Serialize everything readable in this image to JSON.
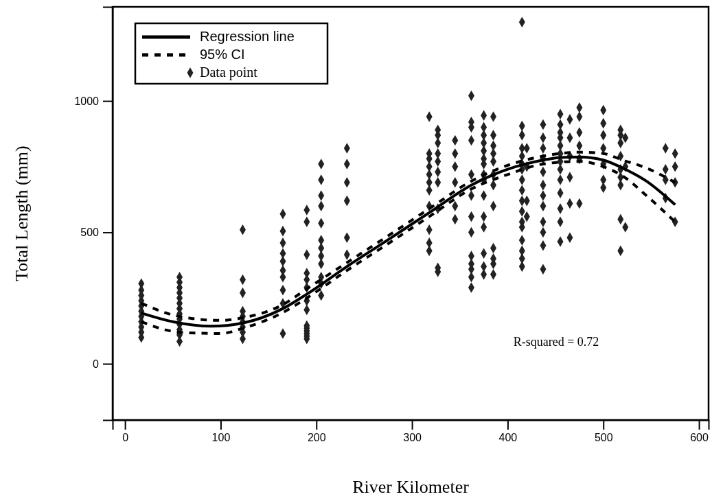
{
  "chart_data": {
    "type": "scatter",
    "xlabel": "River Kilometer",
    "ylabel": "Total Length (mm)",
    "xlim": [
      -13,
      610
    ],
    "ylim": [
      -214,
      1358
    ],
    "xticks": [
      0,
      100,
      200,
      300,
      400,
      500,
      600
    ],
    "yticks": [
      0,
      500,
      1000
    ],
    "legend": "top left",
    "grid": false,
    "annotations": [
      "R-squared = 0.72"
    ],
    "series": [
      {
        "name": "Regression line",
        "type": "line",
        "line_style": "solid",
        "color": "#000000",
        "x": [
          17,
          50,
          90,
          123,
          165,
          190,
          232,
          270,
          318,
          362,
          400,
          437,
          455,
          475,
          500,
          520,
          545,
          575
        ],
        "values": [
          193,
          160,
          143,
          155,
          210,
          265,
          370,
          460,
          575,
          680,
          740,
          775,
          785,
          787,
          775,
          745,
          695,
          605
        ]
      },
      {
        "name": "95% CI",
        "type": "line",
        "line_style": "dashed",
        "color": "#000000",
        "x": [
          17,
          57,
          100,
          123,
          165,
          190,
          232,
          270,
          318,
          362,
          400,
          437,
          475,
          500,
          520,
          545,
          575
        ],
        "values": [
          230,
          180,
          165,
          175,
          225,
          285,
          385,
          475,
          590,
          695,
          755,
          790,
          805,
          800,
          775,
          745,
          690
        ]
      },
      {
        "type": "line",
        "line_style": "dashed",
        "color": "#000000",
        "x": [
          17,
          57,
          100,
          123,
          165,
          190,
          232,
          270,
          318,
          362,
          400,
          437,
          475,
          500,
          520,
          545,
          575
        ],
        "values": [
          160,
          120,
          115,
          135,
          195,
          250,
          355,
          445,
          560,
          665,
          720,
          760,
          770,
          750,
          715,
          640,
          540
        ]
      },
      {
        "name": "Data point",
        "marker": "diamond",
        "color": "#222222",
        "x": [
          17,
          17,
          17,
          17,
          17,
          17,
          17,
          17,
          17,
          17,
          17,
          57,
          57,
          57,
          57,
          57,
          57,
          57,
          57,
          57,
          57,
          57,
          57,
          57,
          123,
          123,
          123,
          123,
          123,
          123,
          123,
          123,
          123,
          165,
          165,
          165,
          165,
          165,
          165,
          165,
          165,
          165,
          165,
          190,
          190,
          190,
          190,
          190,
          190,
          190,
          190,
          190,
          190,
          190,
          190,
          190,
          190,
          205,
          205,
          205,
          205,
          205,
          205,
          205,
          205,
          205,
          205,
          205,
          205,
          232,
          232,
          232,
          232,
          232,
          232,
          318,
          318,
          318,
          318,
          318,
          318,
          318,
          318,
          318,
          318,
          318,
          327,
          327,
          327,
          327,
          327,
          327,
          327,
          327,
          327,
          327,
          345,
          345,
          345,
          345,
          345,
          345,
          362,
          362,
          362,
          362,
          362,
          362,
          362,
          362,
          362,
          362,
          362,
          362,
          362,
          375,
          375,
          375,
          375,
          375,
          375,
          375,
          375,
          375,
          375,
          375,
          375,
          375,
          375,
          375,
          385,
          385,
          385,
          385,
          385,
          385,
          385,
          385,
          385,
          385,
          385,
          385,
          415,
          415,
          415,
          415,
          415,
          415,
          415,
          415,
          415,
          415,
          415,
          415,
          415,
          415,
          415,
          415,
          415,
          420,
          420,
          420,
          420,
          437,
          437,
          437,
          437,
          437,
          437,
          437,
          437,
          437,
          437,
          437,
          437,
          455,
          455,
          455,
          455,
          455,
          455,
          455,
          455,
          455,
          455,
          455,
          455,
          455,
          465,
          465,
          465,
          465,
          465,
          465,
          475,
          475,
          475,
          475,
          475,
          475,
          500,
          500,
          500,
          500,
          500,
          500,
          500,
          518,
          518,
          518,
          518,
          518,
          518,
          518,
          518,
          518,
          523,
          523,
          523,
          565,
          565,
          565,
          565,
          575,
          575,
          575,
          575
        ],
        "values": [
          100,
          120,
          140,
          160,
          180,
          200,
          220,
          240,
          260,
          280,
          305,
          85,
          110,
          130,
          150,
          170,
          190,
          210,
          230,
          250,
          270,
          290,
          310,
          330,
          95,
          120,
          140,
          160,
          180,
          200,
          270,
          320,
          510,
          115,
          230,
          280,
          330,
          355,
          390,
          420,
          460,
          505,
          570,
          95,
          105,
          115,
          125,
          135,
          145,
          205,
          240,
          290,
          320,
          345,
          415,
          540,
          585,
          260,
          305,
          330,
          380,
          410,
          440,
          470,
          535,
          600,
          640,
          700,
          760,
          415,
          480,
          620,
          690,
          760,
          820,
          430,
          460,
          510,
          600,
          660,
          690,
          720,
          750,
          780,
          800,
          940,
          350,
          365,
          590,
          690,
          730,
          770,
          800,
          840,
          870,
          890,
          550,
          600,
          690,
          750,
          800,
          850,
          290,
          330,
          360,
          380,
          410,
          500,
          560,
          640,
          720,
          850,
          900,
          920,
          1020,
          340,
          370,
          420,
          520,
          560,
          640,
          700,
          720,
          760,
          780,
          810,
          840,
          870,
          900,
          945,
          340,
          380,
          400,
          440,
          600,
          680,
          720,
          770,
          800,
          830,
          870,
          940,
          370,
          400,
          430,
          470,
          520,
          540,
          580,
          620,
          660,
          700,
          740,
          760,
          790,
          820,
          870,
          905,
          1300,
          560,
          620,
          750,
          820,
          360,
          450,
          500,
          540,
          600,
          640,
          680,
          730,
          780,
          820,
          860,
          910,
          465,
          540,
          590,
          650,
          700,
          740,
          770,
          800,
          830,
          860,
          880,
          910,
          950,
          480,
          610,
          710,
          790,
          860,
          930,
          610,
          780,
          830,
          880,
          940,
          975,
          670,
          700,
          760,
          820,
          870,
          915,
          965,
          430,
          550,
          680,
          710,
          740,
          790,
          840,
          870,
          890,
          520,
          750,
          860,
          630,
          700,
          740,
          820,
          540,
          690,
          750,
          800
        ]
      }
    ]
  }
}
